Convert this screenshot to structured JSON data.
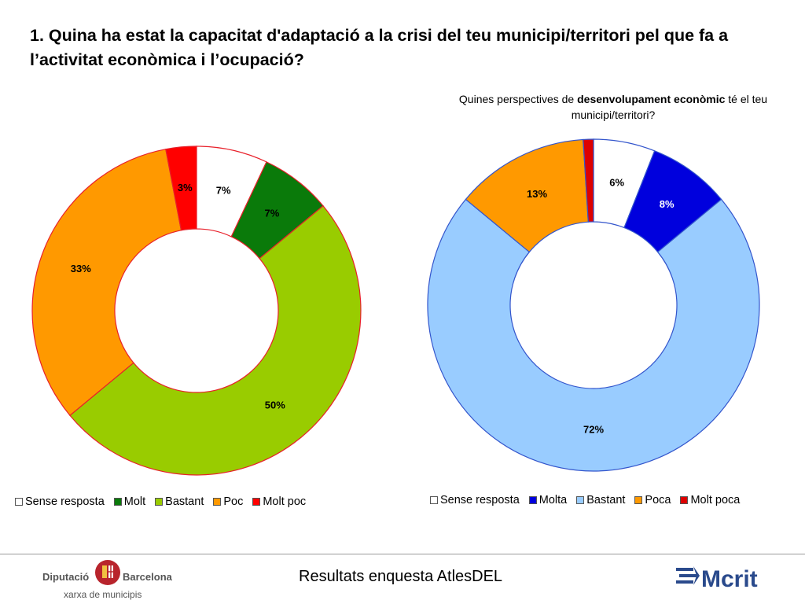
{
  "title": "1. Quina ha estat la capacitat d'adaptació a la crisi del teu municipi/territori pel que fa a l’activitat econòmica i l’ocupació?",
  "subtitle_parts": {
    "before": "Quines perspectives de ",
    "bold": "desenvolupament econòmic",
    "after": " té el teu municipi/territori?"
  },
  "footer": {
    "text": "Resultats enquesta AtlesDEL",
    "logo_left_line1_a": "Diputació",
    "logo_left_line1_b": "Barcelona",
    "logo_left_line2": "xarxa de municipis",
    "logo_right": "Mcrit"
  },
  "colors": {
    "border_red": "#e8202a",
    "border_blue": "#3355cc"
  },
  "chart_data": [
    {
      "type": "pie",
      "variant": "donut",
      "title": "",
      "categories": [
        "Sense resposta",
        "Molt",
        "Bastant",
        "Poc",
        "Molt poc"
      ],
      "values": [
        7,
        7,
        50,
        33,
        3
      ],
      "labels": [
        "7%",
        "7%",
        "50%",
        "33%",
        "3%"
      ],
      "colors": [
        "#ffffff",
        "#0a7a0a",
        "#99cc00",
        "#ff9900",
        "#ff0000"
      ],
      "label_colors": [
        "#000000",
        "#000000",
        "#000000",
        "#000000",
        "#000000"
      ],
      "legend_position": "bottom"
    },
    {
      "type": "pie",
      "variant": "donut",
      "title": "Quines perspectives de desenvolupament econòmic té el teu municipi/territori?",
      "categories": [
        "Sense resposta",
        "Molta",
        "Bastant",
        "Poca",
        "Molt poca"
      ],
      "values": [
        6,
        8,
        72,
        13,
        1
      ],
      "labels": [
        "6%",
        "8%",
        "72%",
        "13%",
        ""
      ],
      "colors": [
        "#ffffff",
        "#0000dd",
        "#99ccff",
        "#ff9900",
        "#dd0000"
      ],
      "label_colors": [
        "#000000",
        "#ffffff",
        "#000000",
        "#000000",
        "#000000"
      ],
      "legend_position": "bottom"
    }
  ]
}
